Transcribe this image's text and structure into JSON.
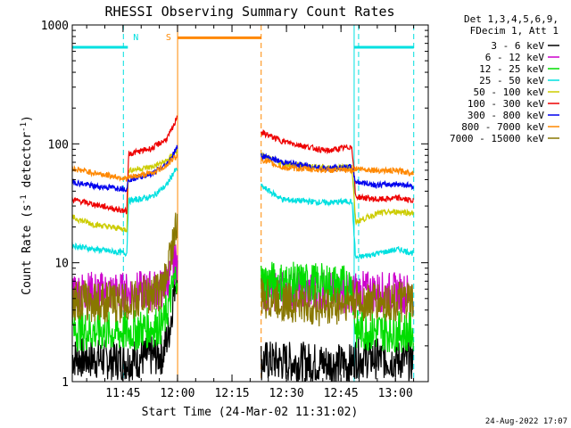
{
  "chart_data": {
    "type": "line",
    "title": "RHESSI Observing Summary Count Rates",
    "xlabel": "Start Time (24-Mar-02 11:31:02)",
    "ylabel_main": "Count Rate (s",
    "ylabel_sup1": "-1",
    "ylabel_mid": " detector",
    "ylabel_sup2": "-1",
    "ylabel_end": ")",
    "yscale": "log",
    "ylim": [
      1,
      1000
    ],
    "xlim_minutes": [
      0,
      98
    ],
    "x_ticks": [
      {
        "label": "11:45",
        "minute": 13.97
      },
      {
        "label": "12:00",
        "minute": 28.97
      },
      {
        "label": "12:15",
        "minute": 43.97
      },
      {
        "label": "12:30",
        "minute": 58.97
      },
      {
        "label": "12:45",
        "minute": 73.97
      },
      {
        "label": "13:00",
        "minute": 88.97
      }
    ],
    "y_ticks": [
      {
        "label": "1",
        "value": 1
      },
      {
        "label": "10",
        "value": 10
      },
      {
        "label": "100",
        "value": 100
      },
      {
        "label": "1000",
        "value": 1000
      }
    ],
    "legend_header": [
      "Det 1,3,4,5,6,9,",
      "FDecim 1, Att 1"
    ],
    "legend_position": "right",
    "series": [
      {
        "name": "3 - 6 keV",
        "color": "#000000",
        "points": [
          [
            0,
            1.6
          ],
          [
            15,
            1.5
          ],
          [
            25,
            1.7
          ],
          [
            27,
            3
          ],
          [
            28,
            6
          ],
          [
            29,
            9
          ]
        ],
        "gap": [
          [
            29,
            52
          ],
          [
            77,
            78
          ]
        ],
        "points2": [
          [
            52,
            1.5
          ],
          [
            77,
            1.4
          ],
          [
            78,
            1.6
          ],
          [
            94,
            1.5
          ]
        ]
      },
      {
        "name": "6 - 12 keV",
        "color": "#cc00cc",
        "points": [
          [
            0,
            5.8
          ],
          [
            15,
            5.6
          ],
          [
            25,
            6
          ],
          [
            27,
            8
          ],
          [
            29,
            11
          ]
        ],
        "points2": [
          [
            52,
            5.8
          ],
          [
            77,
            5.6
          ],
          [
            78,
            5.8
          ],
          [
            94,
            5.5
          ]
        ]
      },
      {
        "name": "12 - 25 keV",
        "color": "#00dd00",
        "points": [
          [
            0,
            2.7
          ],
          [
            15,
            2.6
          ],
          [
            25,
            3
          ],
          [
            27,
            5
          ],
          [
            29,
            9
          ]
        ],
        "points2": [
          [
            52,
            7
          ],
          [
            77,
            6.5
          ],
          [
            78,
            2.7
          ],
          [
            94,
            2.6
          ]
        ]
      },
      {
        "name": "25 - 50 keV",
        "color": "#00e0e0",
        "points": [
          [
            0,
            14
          ],
          [
            6,
            13
          ],
          [
            15,
            12
          ],
          [
            15.5,
            33
          ],
          [
            22,
            36
          ],
          [
            26,
            45
          ],
          [
            28,
            58
          ],
          [
            29,
            62
          ]
        ],
        "points2": [
          [
            52,
            44
          ],
          [
            58,
            34
          ],
          [
            70,
            32
          ],
          [
            77,
            33
          ],
          [
            78,
            11
          ],
          [
            84,
            12
          ],
          [
            90,
            13
          ],
          [
            94,
            12
          ]
        ]
      },
      {
        "name": "50 - 100 keV",
        "color": "#cccc00",
        "points": [
          [
            0,
            24
          ],
          [
            6,
            21
          ],
          [
            15,
            19
          ],
          [
            15.5,
            60
          ],
          [
            22,
            64
          ],
          [
            26,
            72
          ],
          [
            28,
            83
          ],
          [
            29,
            88
          ]
        ],
        "points2": [
          [
            52,
            80
          ],
          [
            58,
            68
          ],
          [
            70,
            63
          ],
          [
            77,
            64
          ],
          [
            78,
            22
          ],
          [
            84,
            26
          ],
          [
            90,
            27
          ],
          [
            94,
            26
          ]
        ]
      },
      {
        "name": "100 - 300 keV",
        "color": "#ee0000",
        "points": [
          [
            0,
            34
          ],
          [
            6,
            31
          ],
          [
            15,
            27
          ],
          [
            15.5,
            82
          ],
          [
            22,
            92
          ],
          [
            26,
            110
          ],
          [
            28,
            142
          ],
          [
            29,
            180
          ]
        ],
        "points2": [
          [
            52,
            125
          ],
          [
            58,
            105
          ],
          [
            70,
            87
          ],
          [
            77,
            95
          ],
          [
            78,
            36
          ],
          [
            84,
            34
          ],
          [
            90,
            35
          ],
          [
            94,
            33
          ]
        ]
      },
      {
        "name": "300 - 800 keV",
        "color": "#0000ee",
        "points": [
          [
            0,
            48
          ],
          [
            6,
            44
          ],
          [
            15,
            42
          ],
          [
            15.5,
            50
          ],
          [
            22,
            56
          ],
          [
            26,
            67
          ],
          [
            28,
            84
          ],
          [
            29,
            95
          ]
        ],
        "points2": [
          [
            52,
            80
          ],
          [
            58,
            70
          ],
          [
            70,
            62
          ],
          [
            77,
            64
          ],
          [
            78,
            48
          ],
          [
            84,
            45
          ],
          [
            90,
            46
          ],
          [
            94,
            44
          ]
        ]
      },
      {
        "name": "800 - 7000 keV",
        "color": "#ff8800",
        "points": [
          [
            0,
            62
          ],
          [
            6,
            57
          ],
          [
            15,
            51
          ],
          [
            15.5,
            52
          ],
          [
            22,
            57
          ],
          [
            26,
            66
          ],
          [
            28,
            76
          ],
          [
            29,
            80
          ]
        ],
        "points2": [
          [
            52,
            74
          ],
          [
            58,
            63
          ],
          [
            70,
            60
          ],
          [
            77,
            60
          ],
          [
            78,
            62
          ],
          [
            84,
            60
          ],
          [
            90,
            59
          ],
          [
            94,
            57
          ]
        ]
      },
      {
        "name": "7000 - 15000 keV",
        "color": "#887700",
        "points": [
          [
            0,
            4.8
          ],
          [
            15,
            4.6
          ],
          [
            25,
            6
          ],
          [
            27,
            12
          ],
          [
            29,
            22
          ]
        ],
        "points2": [
          [
            52,
            5
          ],
          [
            70,
            4.2
          ],
          [
            77,
            4.8
          ],
          [
            78,
            4.7
          ],
          [
            94,
            4.6
          ]
        ]
      }
    ],
    "saa_intervals": [
      [
        0,
        15.3
      ],
      [
        77.6,
        94
      ]
    ],
    "saa_level": 650,
    "night_interval": [
      29,
      52
    ],
    "night_level": 780,
    "saa_color": "#00e0e0",
    "night_color": "#ff8800",
    "annotations": [
      {
        "text": "N",
        "minute": 17.5,
        "color": "#00e0e0"
      },
      {
        "text": "S",
        "minute": 26.5,
        "color": "#ff8800"
      }
    ],
    "grid": false
  },
  "footer_date": "24-Aug-2022 17:07"
}
